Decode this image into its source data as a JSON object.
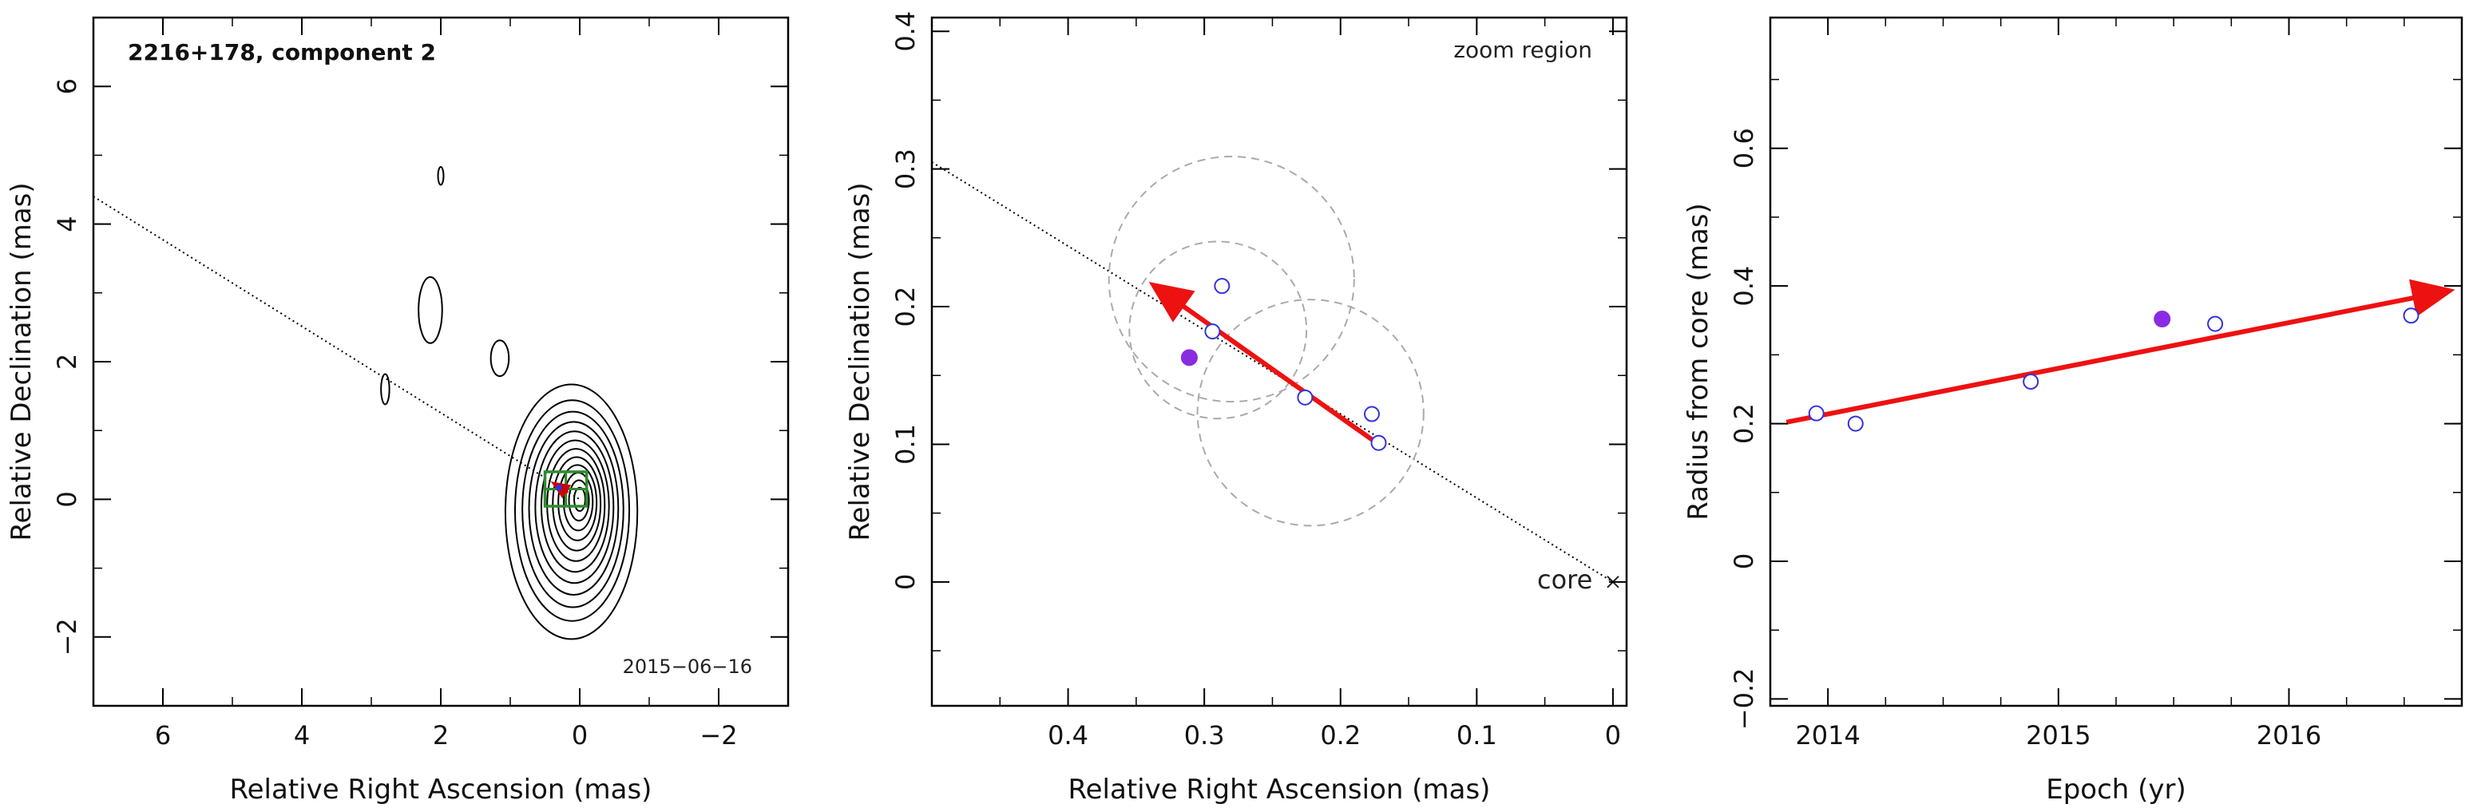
{
  "chart_data": [
    {
      "type": "contour",
      "title": "2216+178, component 2",
      "date_label": "2015−06−16",
      "xlabel": "Relative Right Ascension (mas)",
      "ylabel": "Relative Declination (mas)",
      "xlim": [
        7,
        -3
      ],
      "ylim": [
        -3,
        7
      ],
      "xticks": [
        6,
        4,
        2,
        0,
        -2
      ],
      "xtick_labels": [
        "6",
        "4",
        "2",
        "0",
        "−2"
      ],
      "yticks": [
        -2,
        0,
        2,
        4,
        6
      ],
      "ytick_labels": [
        "−2",
        "0",
        "2",
        "4",
        "6"
      ],
      "jet_axis_line": [
        [
          7,
          4.4
        ],
        [
          0,
          0
        ]
      ],
      "core_contours": {
        "center": [
          0,
          0
        ],
        "count": 12,
        "max_semi_axes": [
          0.95,
          1.85
        ],
        "min_semi_axes": [
          0.08,
          0.17
        ]
      },
      "outer_contours": [
        {
          "center": [
            2.15,
            2.75
          ],
          "rx": 0.17,
          "ry": 0.48
        },
        {
          "center": [
            1.15,
            2.05
          ],
          "rx": 0.13,
          "ry": 0.26
        },
        {
          "center": [
            2.8,
            1.6
          ],
          "rx": 0.06,
          "ry": 0.22
        },
        {
          "center": [
            2.0,
            4.7
          ],
          "rx": 0.04,
          "ry": 0.13
        }
      ],
      "zoom_box": {
        "x_range": [
          0.5,
          -0.1
        ],
        "y_range": [
          -0.1,
          0.4
        ],
        "color": "#2e8b2e"
      },
      "zoom_arrow": {
        "from": [
          0.17,
          0.1
        ],
        "to": [
          0.34,
          0.21
        ],
        "color": "#cc0000"
      }
    },
    {
      "type": "scatter",
      "annotation": "zoom region",
      "core_label": "core",
      "xlabel": "Relative Right Ascension (mas)",
      "ylabel": "Relative Declination (mas)",
      "xlim": [
        0.5,
        -0.01
      ],
      "ylim": [
        -0.09,
        0.41
      ],
      "xticks": [
        0.4,
        0.3,
        0.2,
        0.1,
        0
      ],
      "xtick_labels": [
        "0.4",
        "0.3",
        "0.2",
        "0.1",
        "0"
      ],
      "yticks": [
        0,
        0.1,
        0.2,
        0.3,
        0.4
      ],
      "ytick_labels": [
        "0",
        "0.1",
        "0.2",
        "0.3",
        "0.4"
      ],
      "open_points": [
        [
          0.287,
          0.215
        ],
        [
          0.294,
          0.182
        ],
        [
          0.226,
          0.134
        ],
        [
          0.177,
          0.122
        ],
        [
          0.172,
          0.101
        ]
      ],
      "filled_points": [
        [
          0.311,
          0.163
        ]
      ],
      "circles": [
        {
          "center": [
            0.28,
            0.22
          ],
          "radius": 0.09
        },
        {
          "center": [
            0.29,
            0.183
          ],
          "radius": 0.065
        },
        {
          "center": [
            0.222,
            0.123
          ],
          "radius": 0.083
        }
      ],
      "jet_axis_line": [
        [
          0.5,
          0.305
        ],
        [
          0,
          0
        ]
      ],
      "arrow": {
        "from": [
          0.172,
          0.1
        ],
        "to": [
          0.335,
          0.214
        ],
        "color": "#ee1111"
      },
      "point_color": "#3333dd",
      "filled_color": "#8a2be2"
    },
    {
      "type": "scatter",
      "xlabel": "Epoch (yr)",
      "ylabel": "Radius from core (mas)",
      "xlim": [
        2013.75,
        2016.75
      ],
      "ylim": [
        -0.21,
        0.79
      ],
      "xticks": [
        2014,
        2015,
        2016
      ],
      "xtick_labels": [
        "2014",
        "2015",
        "2016"
      ],
      "yticks": [
        -0.2,
        0,
        0.2,
        0.4,
        0.6
      ],
      "ytick_labels": [
        "−0.2",
        "0",
        "0.2",
        "0.4",
        "0.6"
      ],
      "open_points": [
        [
          2013.95,
          0.215
        ],
        [
          2014.12,
          0.2
        ],
        [
          2014.88,
          0.261
        ],
        [
          2015.68,
          0.345
        ],
        [
          2016.53,
          0.357
        ]
      ],
      "filled_points": [
        [
          2015.45,
          0.352
        ]
      ],
      "arrow": {
        "from": [
          2013.82,
          0.202
        ],
        "to": [
          2016.68,
          0.392
        ],
        "color": "#ee1111"
      },
      "point_color": "#3333dd",
      "filled_color": "#8a2be2"
    }
  ]
}
